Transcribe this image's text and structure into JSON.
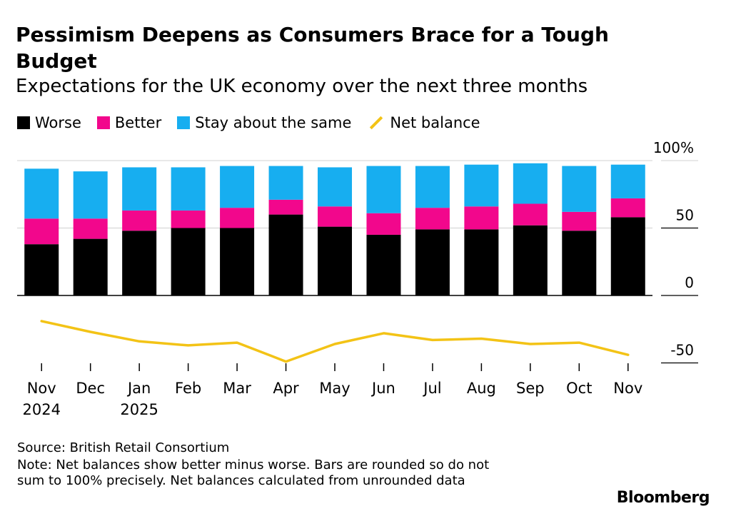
{
  "title": "Pessimism Deepens as Consumers Brace for a Tough Budget",
  "subtitle": "Expectations for the UK economy over the next three months",
  "legend": [
    {
      "label": "Worse",
      "color": "#000000",
      "kind": "box"
    },
    {
      "label": "Better",
      "color": "#f2078c",
      "kind": "box"
    },
    {
      "label": "Stay about the same",
      "color": "#17aef0",
      "kind": "box"
    },
    {
      "label": "Net balance",
      "color": "#f3c316",
      "kind": "line"
    }
  ],
  "source": "Source: British Retail Consortium",
  "note": "Note: Net balances show better minus worse. Bars are rounded so do not sum to 100% precisely. Net balances calculated from unrounded data",
  "brand": "Bloomberg",
  "chart_data": {
    "type": "bar",
    "stacked": true,
    "categories": [
      "Nov",
      "Dec",
      "Jan",
      "Feb",
      "Mar",
      "Apr",
      "May",
      "Jun",
      "Jul",
      "Aug",
      "Sep",
      "Oct",
      "Nov"
    ],
    "category_sublabels": [
      "2024",
      "",
      "2025",
      "",
      "",
      "",
      "",
      "",
      "",
      "",
      "",
      "",
      ""
    ],
    "series": [
      {
        "name": "Worse",
        "color": "#000000",
        "values": [
          38,
          42,
          48,
          50,
          50,
          60,
          51,
          45,
          49,
          49,
          52,
          48,
          58
        ]
      },
      {
        "name": "Better",
        "color": "#f2078c",
        "values": [
          19,
          15,
          15,
          13,
          15,
          11,
          15,
          16,
          16,
          17,
          16,
          14,
          14
        ]
      },
      {
        "name": "Stay about the same",
        "color": "#17aef0",
        "values": [
          37,
          35,
          32,
          32,
          31,
          25,
          29,
          35,
          31,
          31,
          30,
          34,
          25
        ]
      },
      {
        "name": "Net balance",
        "type": "line",
        "color": "#f3c316",
        "values": [
          -19,
          -27,
          -34,
          -37,
          -35,
          -49,
          -36,
          -28,
          -33,
          -32,
          -36,
          -35,
          -44
        ]
      }
    ],
    "yticks": [
      {
        "value": 100,
        "label": "100%"
      },
      {
        "value": 50,
        "label": "50"
      },
      {
        "value": 0,
        "label": "0"
      },
      {
        "value": -50,
        "label": "-50"
      }
    ],
    "ylim": [
      -50,
      100
    ],
    "grid": true
  }
}
